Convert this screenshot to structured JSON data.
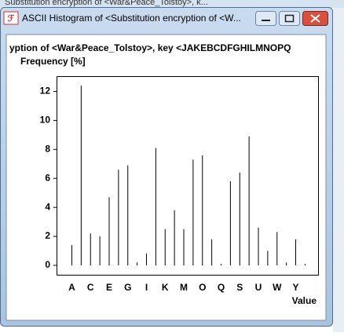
{
  "background_window_title": "Substitution encryption of <War&Peace_Tolstoy>, k...",
  "window_title": "ASCII Histogram of <Substitution encryption of <W...",
  "chart_data": {
    "type": "bar",
    "title": "yption of <War&Peace_Tolstoy>, key <JAKEBCDFGHILMNOPQ",
    "y_label": "Frequency [%]",
    "x_label": "Value",
    "categories": [
      "A",
      null,
      "C",
      null,
      "E",
      null,
      "G",
      null,
      "I",
      null,
      "K",
      null,
      "M",
      null,
      "O",
      null,
      "Q",
      null,
      "S",
      null,
      "U",
      null,
      "W",
      null,
      "Y",
      null
    ],
    "values": [
      1.4,
      12.4,
      2.2,
      2.0,
      4.7,
      6.6,
      6.9,
      0.2,
      0.8,
      8.1,
      2.5,
      3.8,
      2.5,
      7.3,
      7.6,
      1.8,
      0.1,
      5.8,
      6.4,
      8.9,
      2.6,
      1.0,
      2.3,
      0.2,
      1.8,
      0.1
    ],
    "color": "#000000",
    "ylim": [
      -0.65,
      13.0
    ],
    "yticks": [
      0,
      2,
      4,
      6,
      8,
      10,
      12
    ],
    "grid": false
  }
}
